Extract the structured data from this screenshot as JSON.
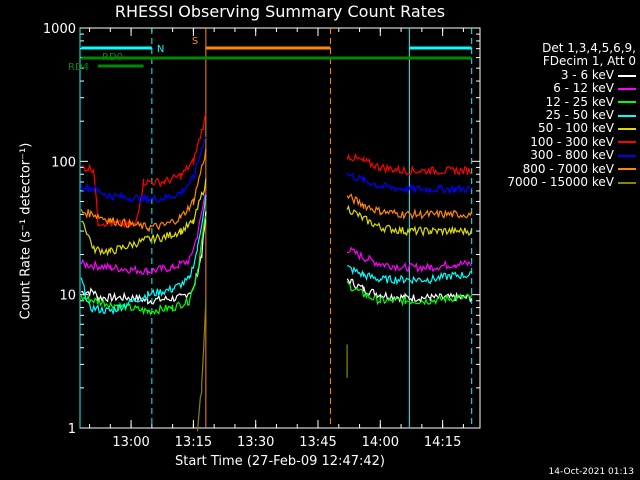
{
  "chart_data": {
    "type": "line",
    "title": "RHESSI Observing Summary Count Rates",
    "xlabel": "Start Time (27-Feb-09 12:47:42)",
    "ylabel": "Count Rate (s⁻¹ detector⁻¹)",
    "yscale": "log",
    "ylim": [
      1,
      1000
    ],
    "xlim": [
      "12:47:42",
      "14:24:00"
    ],
    "x_ticks": [
      "13:00",
      "13:15",
      "13:30",
      "13:45",
      "14:00",
      "14:15"
    ],
    "y_ticks": [
      "1",
      "10",
      "100",
      "1000"
    ],
    "legend_header": [
      "Det 1,3,4,5,6,9,",
      "FDecim 1, Att 0"
    ],
    "legend_placement": "right",
    "series": [
      {
        "name": "3 - 6 keV",
        "color": "#ffffff",
        "segments": [
          [
            [
              "12:48",
              10.5
            ],
            [
              "12:51",
              10.5
            ],
            [
              "12:52",
              9.5
            ],
            [
              "13:01",
              9.5
            ],
            [
              "13:04",
              9.0
            ],
            [
              "13:12",
              9.5
            ],
            [
              "13:15",
              11
            ],
            [
              "13:17",
              20
            ],
            [
              "13:18",
              40
            ]
          ],
          [
            [
              "13:52",
              13
            ],
            [
              "13:56",
              11
            ],
            [
              "14:00",
              10
            ],
            [
              "14:06",
              9.5
            ],
            [
              "14:12",
              9.5
            ],
            [
              "14:18",
              9.5
            ],
            [
              "14:22",
              9.5
            ]
          ]
        ]
      },
      {
        "name": "6 - 12 keV",
        "color": "#ff00ff",
        "segments": [
          [
            [
              "12:48",
              17
            ],
            [
              "12:55",
              16
            ],
            [
              "13:04",
              15
            ],
            [
              "13:10",
              16
            ],
            [
              "13:14",
              18
            ],
            [
              "13:16",
              28
            ],
            [
              "13:18",
              60
            ]
          ],
          [
            [
              "13:52",
              22
            ],
            [
              "13:56",
              19
            ],
            [
              "14:00",
              17
            ],
            [
              "14:06",
              16
            ],
            [
              "14:12",
              16
            ],
            [
              "14:18",
              17
            ],
            [
              "14:22",
              17
            ]
          ]
        ]
      },
      {
        "name": "12 - 25 keV",
        "color": "#00ff00",
        "segments": [
          [
            [
              "12:48",
              9.5
            ],
            [
              "12:55",
              8.5
            ],
            [
              "13:04",
              7.5
            ],
            [
              "13:10",
              8
            ],
            [
              "13:14",
              9
            ],
            [
              "13:16",
              15
            ],
            [
              "13:18",
              40
            ]
          ],
          [
            [
              "13:52",
              12
            ],
            [
              "13:56",
              10
            ],
            [
              "14:00",
              9
            ],
            [
              "14:06",
              9
            ],
            [
              "14:12",
              9
            ],
            [
              "14:18",
              9.5
            ],
            [
              "14:22",
              9.5
            ]
          ]
        ]
      },
      {
        "name": "25 - 50 keV",
        "color": "#00ffff",
        "segments": [
          [
            [
              "12:48",
              13
            ],
            [
              "12:50",
              8
            ],
            [
              "12:55",
              7.5
            ],
            [
              "13:04",
              10
            ],
            [
              "13:10",
              11
            ],
            [
              "13:14",
              13
            ],
            [
              "13:16",
              22
            ],
            [
              "13:18",
              55
            ]
          ],
          [
            [
              "13:52",
              16
            ],
            [
              "13:56",
              14
            ],
            [
              "14:00",
              13
            ],
            [
              "14:06",
              13
            ],
            [
              "14:12",
              13
            ],
            [
              "14:18",
              14
            ],
            [
              "14:22",
              14
            ]
          ]
        ]
      },
      {
        "name": "50 - 100 keV",
        "color": "#dddd00",
        "segments": [
          [
            [
              "12:48",
              38
            ],
            [
              "12:51",
              22
            ],
            [
              "12:55",
              21
            ],
            [
              "13:04",
              26
            ],
            [
              "13:08",
              27
            ],
            [
              "13:12",
              30
            ],
            [
              "13:15",
              35
            ],
            [
              "13:18",
              70
            ]
          ],
          [
            [
              "13:52",
              45
            ],
            [
              "13:56",
              37
            ],
            [
              "14:00",
              32
            ],
            [
              "14:06",
              30
            ],
            [
              "14:12",
              30
            ],
            [
              "14:18",
              30
            ],
            [
              "14:22",
              30
            ]
          ]
        ]
      },
      {
        "name": "100 - 300 keV",
        "color": "#ff0000",
        "segments": [
          [
            [
              "12:48",
              90
            ],
            [
              "12:51",
              88
            ],
            [
              "12:52",
              35
            ],
            [
              "13:01",
              33
            ],
            [
              "13:03",
              70
            ],
            [
              "13:08",
              70
            ],
            [
              "13:12",
              78
            ],
            [
              "13:15",
              100
            ],
            [
              "13:18",
              220
            ]
          ],
          [
            [
              "13:52",
              110
            ],
            [
              "13:56",
              100
            ],
            [
              "14:00",
              90
            ],
            [
              "14:06",
              85
            ],
            [
              "14:12",
              85
            ],
            [
              "14:18",
              85
            ],
            [
              "14:22",
              85
            ]
          ]
        ]
      },
      {
        "name": "300 - 800 keV",
        "color": "#0000ff",
        "segments": [
          [
            [
              "12:48",
              65
            ],
            [
              "12:51",
              62
            ],
            [
              "12:55",
              55
            ],
            [
              "13:04",
              52
            ],
            [
              "13:08",
              53
            ],
            [
              "13:12",
              58
            ],
            [
              "13:15",
              75
            ],
            [
              "13:18",
              160
            ]
          ],
          [
            [
              "13:52",
              80
            ],
            [
              "13:56",
              72
            ],
            [
              "14:00",
              65
            ],
            [
              "14:06",
              62
            ],
            [
              "14:12",
              62
            ],
            [
              "14:18",
              62
            ],
            [
              "14:22",
              62
            ]
          ]
        ]
      },
      {
        "name": "800 - 7000 keV",
        "color": "#ff8800",
        "segments": [
          [
            [
              "12:48",
              42
            ],
            [
              "12:51",
              40
            ],
            [
              "12:55",
              36
            ],
            [
              "13:04",
              32
            ],
            [
              "13:08",
              33
            ],
            [
              "13:12",
              38
            ],
            [
              "13:15",
              50
            ],
            [
              "13:18",
              120
            ]
          ],
          [
            [
              "13:52",
              55
            ],
            [
              "13:56",
              47
            ],
            [
              "14:00",
              42
            ],
            [
              "14:06",
              40
            ],
            [
              "14:12",
              40
            ],
            [
              "14:18",
              40
            ],
            [
              "14:22",
              40
            ]
          ]
        ]
      },
      {
        "name": "7000 - 15000 keV",
        "color": "#888800",
        "segments": [
          [
            [
              "13:16",
              1
            ],
            [
              "13:17",
              2
            ],
            [
              "13:17:30",
              4
            ],
            [
              "13:18",
              9
            ]
          ],
          [
            [
              "13:52",
              2.5
            ],
            [
              "13:52",
              4
            ]
          ]
        ]
      }
    ],
    "flags": [
      {
        "label": "N",
        "color": "#00ffff",
        "y_row": "top",
        "spans": [
          [
            "12:48",
            "13:05"
          ],
          [
            "14:07",
            "14:22"
          ]
        ]
      },
      {
        "label": "S",
        "color": "#ff8800",
        "y_row": "top",
        "spans": [
          [
            "13:18",
            "13:48"
          ]
        ]
      },
      {
        "label": "RD0",
        "color": "#008800",
        "y_row": "middle",
        "spans": [
          [
            "12:48",
            "13:05"
          ],
          [
            "13:05",
            "14:22"
          ]
        ]
      },
      {
        "label": "RD4",
        "color": "#008800",
        "y_row": "low",
        "spans": [
          [
            "12:52",
            "13:03"
          ]
        ]
      }
    ],
    "vlines": [
      {
        "x": "12:47:42",
        "color": "#00ffff",
        "style": "solid"
      },
      {
        "x": "13:05",
        "color": "#00ffff",
        "style": "dashed"
      },
      {
        "x": "13:18",
        "color": "#ff8800",
        "style": "solid"
      },
      {
        "x": "13:48",
        "color": "#ff8800",
        "style": "dashed"
      },
      {
        "x": "14:07",
        "color": "#00ffff",
        "style": "solid"
      },
      {
        "x": "14:22",
        "color": "#00ffff",
        "style": "dashed"
      }
    ]
  },
  "stamp": "14-Oct-2021 01:13"
}
